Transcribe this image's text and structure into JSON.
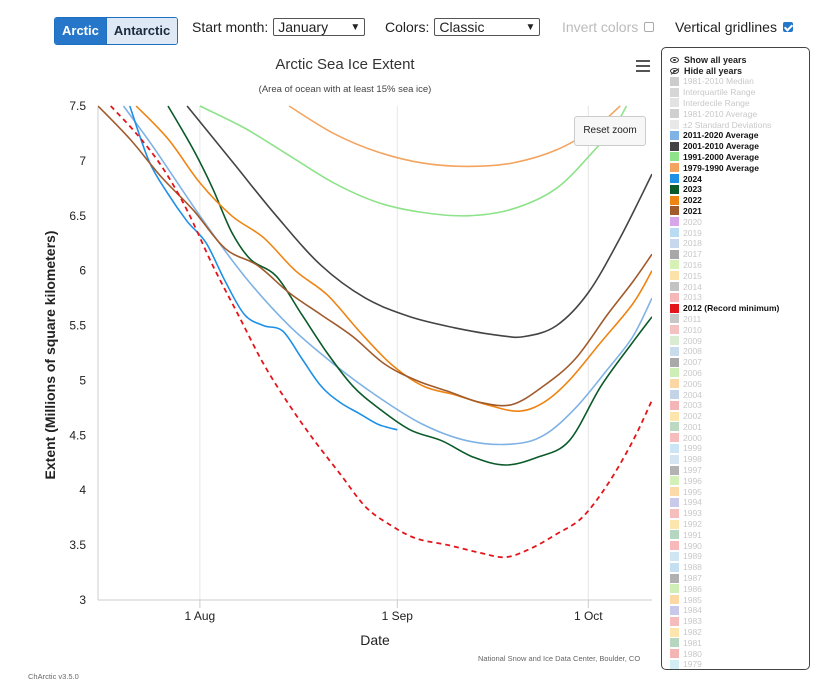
{
  "controls": {
    "region_tabs": [
      {
        "label": "Arctic",
        "selected": true
      },
      {
        "label": "Antarctic",
        "selected": false
      }
    ],
    "start_month_label": "Start month:",
    "start_month_value": "January",
    "colors_label": "Colors:",
    "colors_value": "Classic",
    "invert_colors_label": "Invert colors",
    "invert_colors_checked": false,
    "vertical_gridlines_label": "Vertical gridlines",
    "vertical_gridlines_checked": true,
    "reset_zoom_label": "Reset zoom",
    "menu_icon": "hamburger-menu-icon",
    "eye_icon": "eye-icon",
    "eye_slash_icon": "eye-slash-icon"
  },
  "credit": "National Snow and Ice Data Center, Boulder, CO",
  "version": "ChArctic v3.5.0",
  "chart_data": {
    "type": "line",
    "title": "Arctic Sea Ice Extent",
    "subtitle": "(Area of ocean with at least 15% sea ice)",
    "xlabel": "Date",
    "ylabel": "Extent (Millions of square kilometers)",
    "xlim": [
      "2024-07-16",
      "2024-10-11"
    ],
    "ylim": [
      3,
      7.5
    ],
    "x_ticks": [
      {
        "label": "1 Aug",
        "date": "2024-08-01"
      },
      {
        "label": "1 Sep",
        "date": "2024-09-01"
      },
      {
        "label": "1 Oct",
        "date": "2024-10-01"
      }
    ],
    "y_ticks": [
      3,
      3.5,
      4,
      4.5,
      5,
      5.5,
      6,
      6.5,
      7,
      7.5
    ],
    "vertical_gridlines": true,
    "series": [
      {
        "name": "1979-1990 Average",
        "color": "#f3a45f",
        "dash": false,
        "points": [
          [
            "2024-08-15",
            7.5
          ],
          [
            "2024-08-22",
            7.25
          ],
          [
            "2024-08-29",
            7.08
          ],
          [
            "2024-09-05",
            6.98
          ],
          [
            "2024-09-12",
            6.95
          ],
          [
            "2024-09-19",
            6.98
          ],
          [
            "2024-09-26",
            7.1
          ],
          [
            "2024-10-02",
            7.3
          ],
          [
            "2024-10-06",
            7.5
          ]
        ]
      },
      {
        "name": "1991-2000 Average",
        "color": "#8ee38a",
        "dash": false,
        "points": [
          [
            "2024-08-01",
            7.5
          ],
          [
            "2024-08-08",
            7.3
          ],
          [
            "2024-08-15",
            7.05
          ],
          [
            "2024-08-22",
            6.8
          ],
          [
            "2024-08-29",
            6.62
          ],
          [
            "2024-09-05",
            6.53
          ],
          [
            "2024-09-12",
            6.5
          ],
          [
            "2024-09-19",
            6.56
          ],
          [
            "2024-09-26",
            6.75
          ],
          [
            "2024-10-02",
            7.1
          ],
          [
            "2024-10-05",
            7.3
          ],
          [
            "2024-10-07",
            7.5
          ]
        ]
      },
      {
        "name": "2001-2010 Average",
        "color": "#444444",
        "dash": false,
        "points": [
          [
            "2024-07-30",
            7.5
          ],
          [
            "2024-08-06",
            7.0
          ],
          [
            "2024-08-13",
            6.5
          ],
          [
            "2024-08-20",
            6.05
          ],
          [
            "2024-08-27",
            5.75
          ],
          [
            "2024-09-03",
            5.58
          ],
          [
            "2024-09-10",
            5.48
          ],
          [
            "2024-09-17",
            5.41
          ],
          [
            "2024-09-21",
            5.4
          ],
          [
            "2024-09-26",
            5.5
          ],
          [
            "2024-10-01",
            5.8
          ],
          [
            "2024-10-06",
            6.3
          ],
          [
            "2024-10-11",
            6.88
          ]
        ]
      },
      {
        "name": "2011-2020 Average",
        "color": "#7fb2e5",
        "dash": false,
        "points": [
          [
            "2024-07-20",
            7.5
          ],
          [
            "2024-07-25",
            7.1
          ],
          [
            "2024-08-01",
            6.5
          ],
          [
            "2024-08-08",
            5.95
          ],
          [
            "2024-08-15",
            5.5
          ],
          [
            "2024-08-22",
            5.15
          ],
          [
            "2024-08-29",
            4.85
          ],
          [
            "2024-09-05",
            4.6
          ],
          [
            "2024-09-12",
            4.45
          ],
          [
            "2024-09-19",
            4.42
          ],
          [
            "2024-09-24",
            4.5
          ],
          [
            "2024-09-29",
            4.75
          ],
          [
            "2024-10-04",
            5.1
          ],
          [
            "2024-10-08",
            5.4
          ],
          [
            "2024-10-11",
            5.75
          ]
        ]
      },
      {
        "name": "2024",
        "color": "#1e90e6",
        "dash": false,
        "points": [
          [
            "2024-07-21",
            7.5
          ],
          [
            "2024-07-24",
            7.0
          ],
          [
            "2024-07-27",
            6.7
          ],
          [
            "2024-07-30",
            6.45
          ],
          [
            "2024-08-02",
            6.25
          ],
          [
            "2024-08-05",
            5.9
          ],
          [
            "2024-08-08",
            5.6
          ],
          [
            "2024-08-11",
            5.5
          ],
          [
            "2024-08-14",
            5.45
          ],
          [
            "2024-08-17",
            5.2
          ],
          [
            "2024-08-20",
            4.95
          ],
          [
            "2024-08-23",
            4.8
          ],
          [
            "2024-08-26",
            4.7
          ],
          [
            "2024-08-29",
            4.6
          ],
          [
            "2024-09-01",
            4.55
          ]
        ]
      },
      {
        "name": "2023",
        "color": "#0b5a2a",
        "dash": false,
        "points": [
          [
            "2024-07-27",
            7.5
          ],
          [
            "2024-07-31",
            7.1
          ],
          [
            "2024-08-03",
            6.75
          ],
          [
            "2024-08-06",
            6.35
          ],
          [
            "2024-08-09",
            6.1
          ],
          [
            "2024-08-13",
            5.95
          ],
          [
            "2024-08-17",
            5.6
          ],
          [
            "2024-08-21",
            5.25
          ],
          [
            "2024-08-25",
            4.95
          ],
          [
            "2024-08-29",
            4.75
          ],
          [
            "2024-09-03",
            4.55
          ],
          [
            "2024-09-08",
            4.45
          ],
          [
            "2024-09-13",
            4.3
          ],
          [
            "2024-09-18",
            4.23
          ],
          [
            "2024-09-23",
            4.3
          ],
          [
            "2024-09-28",
            4.45
          ],
          [
            "2024-10-03",
            4.95
          ],
          [
            "2024-10-08",
            5.35
          ],
          [
            "2024-10-11",
            5.58
          ]
        ]
      },
      {
        "name": "2022",
        "color": "#ee8412",
        "dash": false,
        "points": [
          [
            "2024-07-22",
            7.5
          ],
          [
            "2024-07-27",
            7.2
          ],
          [
            "2024-08-01",
            6.8
          ],
          [
            "2024-08-06",
            6.5
          ],
          [
            "2024-08-11",
            6.3
          ],
          [
            "2024-08-16",
            6.0
          ],
          [
            "2024-08-21",
            5.78
          ],
          [
            "2024-08-26",
            5.45
          ],
          [
            "2024-08-31",
            5.15
          ],
          [
            "2024-09-05",
            4.95
          ],
          [
            "2024-09-10",
            4.87
          ],
          [
            "2024-09-15",
            4.78
          ],
          [
            "2024-09-20",
            4.72
          ],
          [
            "2024-09-24",
            4.8
          ],
          [
            "2024-09-28",
            5.0
          ],
          [
            "2024-10-03",
            5.35
          ],
          [
            "2024-10-08",
            5.7
          ],
          [
            "2024-10-11",
            6.0
          ]
        ]
      },
      {
        "name": "2021",
        "color": "#a05a2c",
        "dash": false,
        "points": [
          [
            "2024-07-16",
            7.5
          ],
          [
            "2024-07-21",
            7.2
          ],
          [
            "2024-07-26",
            6.85
          ],
          [
            "2024-07-31",
            6.55
          ],
          [
            "2024-08-05",
            6.2
          ],
          [
            "2024-08-10",
            6.05
          ],
          [
            "2024-08-15",
            5.8
          ],
          [
            "2024-08-20",
            5.6
          ],
          [
            "2024-08-25",
            5.4
          ],
          [
            "2024-08-30",
            5.15
          ],
          [
            "2024-09-04",
            5.0
          ],
          [
            "2024-09-09",
            4.9
          ],
          [
            "2024-09-14",
            4.8
          ],
          [
            "2024-09-19",
            4.78
          ],
          [
            "2024-09-24",
            4.95
          ],
          [
            "2024-09-29",
            5.2
          ],
          [
            "2024-10-04",
            5.6
          ],
          [
            "2024-10-08",
            5.9
          ],
          [
            "2024-10-11",
            6.15
          ]
        ]
      },
      {
        "name": "2012 (Record minimum)",
        "color": "#e4151a",
        "dash": true,
        "points": [
          [
            "2024-07-18",
            7.5
          ],
          [
            "2024-07-22",
            7.25
          ],
          [
            "2024-07-26",
            6.95
          ],
          [
            "2024-07-30",
            6.55
          ],
          [
            "2024-08-03",
            6.05
          ],
          [
            "2024-08-07",
            5.6
          ],
          [
            "2024-08-11",
            5.15
          ],
          [
            "2024-08-15",
            4.78
          ],
          [
            "2024-08-19",
            4.45
          ],
          [
            "2024-08-23",
            4.15
          ],
          [
            "2024-08-27",
            3.85
          ],
          [
            "2024-08-31",
            3.68
          ],
          [
            "2024-09-04",
            3.56
          ],
          [
            "2024-09-09",
            3.5
          ],
          [
            "2024-09-14",
            3.43
          ],
          [
            "2024-09-18",
            3.39
          ],
          [
            "2024-09-22",
            3.47
          ],
          [
            "2024-09-26",
            3.6
          ],
          [
            "2024-09-30",
            3.75
          ],
          [
            "2024-10-04",
            4.05
          ],
          [
            "2024-10-08",
            4.45
          ],
          [
            "2024-10-11",
            4.82
          ]
        ]
      }
    ]
  },
  "legend": {
    "show_all": "Show all years",
    "hide_all": "Hide all years",
    "items": [
      {
        "label": "1981-2010 Median",
        "color": "#cccccc",
        "visible": false
      },
      {
        "label": "Interquartile Range",
        "color": "#d6d6d6",
        "visible": false
      },
      {
        "label": "Interdecile Range",
        "color": "#e2e2e2",
        "visible": false
      },
      {
        "label": "1981-2010 Average",
        "color": "#cfcfcf",
        "visible": false
      },
      {
        "label": "±2 Standard Deviations",
        "color": "#e8e8e8",
        "visible": false
      },
      {
        "label": "2011-2020 Average",
        "color": "#7fb2e5",
        "visible": true
      },
      {
        "label": "2001-2010 Average",
        "color": "#444444",
        "visible": true
      },
      {
        "label": "1991-2000 Average",
        "color": "#8ee38a",
        "visible": true
      },
      {
        "label": "1979-1990 Average",
        "color": "#f3a45f",
        "visible": true
      },
      {
        "label": "2024",
        "color": "#1e90e6",
        "visible": true
      },
      {
        "label": "2023",
        "color": "#0b5a2a",
        "visible": true
      },
      {
        "label": "2022",
        "color": "#ee8412",
        "visible": true
      },
      {
        "label": "2021",
        "color": "#a05a2c",
        "visible": true
      },
      {
        "label": "2020",
        "color": "#d7a6e8",
        "visible": false
      },
      {
        "label": "2019",
        "color": "#b9dcf2",
        "visible": false
      },
      {
        "label": "2018",
        "color": "#c6d7ee",
        "visible": false
      },
      {
        "label": "2017",
        "color": "#a8a8a8",
        "visible": false
      },
      {
        "label": "2016",
        "color": "#d6f1b4",
        "visible": false
      },
      {
        "label": "2015",
        "color": "#fce2a9",
        "visible": false
      },
      {
        "label": "2014",
        "color": "#c3c3c3",
        "visible": false
      },
      {
        "label": "2013",
        "color": "#f5b7b7",
        "visible": false
      },
      {
        "label": "2012 (Record minimum)",
        "color": "#e4151a",
        "visible": true
      },
      {
        "label": "2011",
        "color": "#c7c7c7",
        "visible": false
      },
      {
        "label": "2010",
        "color": "#f4c1c1",
        "visible": false
      },
      {
        "label": "2009",
        "color": "#d9ecd2",
        "visible": false
      },
      {
        "label": "2008",
        "color": "#c9dcec",
        "visible": false
      },
      {
        "label": "2007",
        "color": "#a9a9a9",
        "visible": false
      },
      {
        "label": "2006",
        "color": "#cdeeb7",
        "visible": false
      },
      {
        "label": "2005",
        "color": "#fbd7a5",
        "visible": false
      },
      {
        "label": "2004",
        "color": "#c3d3e8",
        "visible": false
      },
      {
        "label": "2003",
        "color": "#f3b5b5",
        "visible": false
      },
      {
        "label": "2002",
        "color": "#fde6ad",
        "visible": false
      },
      {
        "label": "2001",
        "color": "#bcd9c2",
        "visible": false
      },
      {
        "label": "2000",
        "color": "#f7bcbc",
        "visible": false
      },
      {
        "label": "1999",
        "color": "#cce5f4",
        "visible": false
      },
      {
        "label": "1998",
        "color": "#d4e4f1",
        "visible": false
      },
      {
        "label": "1997",
        "color": "#b3b3b3",
        "visible": false
      },
      {
        "label": "1996",
        "color": "#d3f0b8",
        "visible": false
      },
      {
        "label": "1995",
        "color": "#fbd9a8",
        "visible": false
      },
      {
        "label": "1994",
        "color": "#c9c9ea",
        "visible": false
      },
      {
        "label": "1993",
        "color": "#f6bdbd",
        "visible": false
      },
      {
        "label": "1992",
        "color": "#fde5ae",
        "visible": false
      },
      {
        "label": "1991",
        "color": "#b5d6c0",
        "visible": false
      },
      {
        "label": "1990",
        "color": "#f7b9b9",
        "visible": false
      },
      {
        "label": "1989",
        "color": "#d0e7f3",
        "visible": false
      },
      {
        "label": "1988",
        "color": "#c4dff0",
        "visible": false
      },
      {
        "label": "1987",
        "color": "#b1b1b1",
        "visible": false
      },
      {
        "label": "1986",
        "color": "#d0efb6",
        "visible": false
      },
      {
        "label": "1985",
        "color": "#fcd8a4",
        "visible": false
      },
      {
        "label": "1984",
        "color": "#c8c8eb",
        "visible": false
      },
      {
        "label": "1983",
        "color": "#f5bcbc",
        "visible": false
      },
      {
        "label": "1982",
        "color": "#fde5ad",
        "visible": false
      },
      {
        "label": "1981",
        "color": "#b6d6bf",
        "visible": false
      },
      {
        "label": "1980",
        "color": "#f5b4b4",
        "visible": false
      },
      {
        "label": "1979",
        "color": "#d4ecf4",
        "visible": false
      }
    ]
  }
}
